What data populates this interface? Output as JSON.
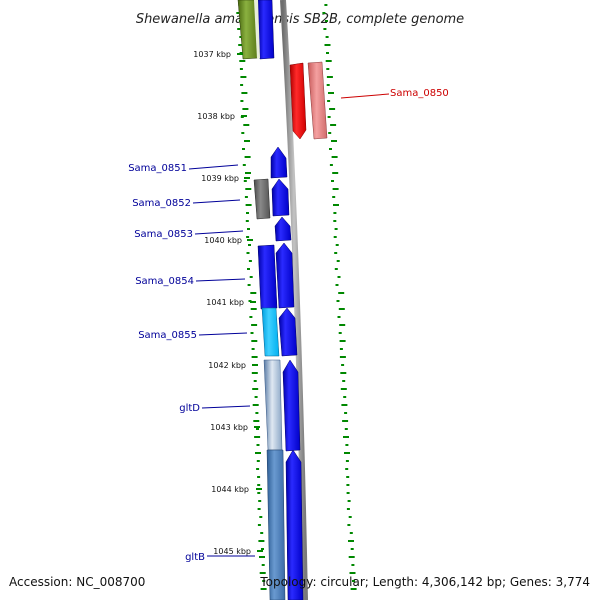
{
  "title": "Shewanella amazonensis SB2B, complete genome",
  "footer": {
    "accession": "Accession: NC_008700",
    "summary": "Topology: circular; Length: 4,306,142 bp; Genes: 3,774"
  },
  "colors": {
    "forward_gene": "#0000ee",
    "reverse_gene": "#ee0000",
    "label_forward": "#000099",
    "label_reverse": "#cc0000",
    "backbone": "#8c8c8c",
    "ticks": "#008800"
  },
  "axis": {
    "unit": "kbp",
    "ticks": [
      {
        "label": "1037 kbp"
      },
      {
        "label": "1038 kbp"
      },
      {
        "label": "1039 kbp"
      },
      {
        "label": "1040 kbp"
      },
      {
        "label": "1041 kbp"
      },
      {
        "label": "1042 kbp"
      },
      {
        "label": "1043 kbp"
      },
      {
        "label": "1044 kbp"
      },
      {
        "label": "1045 kbp"
      }
    ]
  },
  "gene_labels": [
    {
      "text": "Sama_0850",
      "strand": "reverse"
    },
    {
      "text": "Sama_0851",
      "strand": "forward"
    },
    {
      "text": "Sama_0852",
      "strand": "forward"
    },
    {
      "text": "Sama_0853",
      "strand": "forward"
    },
    {
      "text": "Sama_0854",
      "strand": "forward"
    },
    {
      "text": "Sama_0855",
      "strand": "forward"
    },
    {
      "text": "gltD",
      "strand": "forward"
    },
    {
      "text": "gltB",
      "strand": "forward"
    }
  ]
}
